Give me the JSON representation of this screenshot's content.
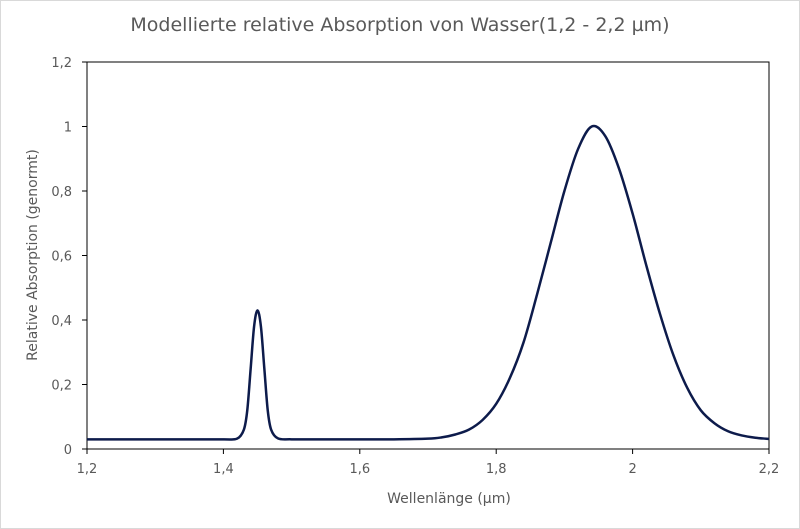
{
  "chart_data": {
    "type": "line",
    "title": "Modellierte relative Absorption von Wasser(1,2 - 2,2 µm)",
    "xlabel": "Wellenlänge (µm)",
    "ylabel": "Relative Absorption (genormt)",
    "xlim": [
      1.2,
      2.2
    ],
    "ylim": [
      0,
      1.2
    ],
    "xticks": [
      1.2,
      1.4,
      1.6,
      1.8,
      2.0,
      2.2
    ],
    "xtick_labels": [
      "1,2",
      "1,4",
      "1,6",
      "1,8",
      "2",
      "2,2"
    ],
    "yticks": [
      0,
      0.2,
      0.4,
      0.6,
      0.8,
      1.0,
      1.2
    ],
    "ytick_labels": [
      "0",
      "0,2",
      "0,4",
      "0,6",
      "0,8",
      "1",
      "1,2"
    ],
    "grid": false,
    "legend": "none",
    "line_color": "#0d1b4b",
    "series": [
      {
        "x": [
          1.2,
          1.25,
          1.3,
          1.35,
          1.4,
          1.42,
          1.43,
          1.435,
          1.44,
          1.445,
          1.45,
          1.455,
          1.46,
          1.465,
          1.47,
          1.48,
          1.5,
          1.55,
          1.6,
          1.65,
          1.7,
          1.72,
          1.74,
          1.76,
          1.78,
          1.8,
          1.82,
          1.84,
          1.86,
          1.88,
          1.9,
          1.92,
          1.94,
          1.96,
          1.98,
          2.0,
          2.02,
          2.04,
          2.06,
          2.08,
          2.1,
          2.12,
          2.14,
          2.16,
          2.18,
          2.2
        ],
        "y": [
          0.03,
          0.03,
          0.03,
          0.03,
          0.03,
          0.032,
          0.06,
          0.12,
          0.25,
          0.38,
          0.43,
          0.38,
          0.25,
          0.12,
          0.06,
          0.033,
          0.03,
          0.03,
          0.03,
          0.03,
          0.032,
          0.036,
          0.045,
          0.06,
          0.09,
          0.14,
          0.22,
          0.33,
          0.48,
          0.64,
          0.8,
          0.93,
          1.0,
          0.97,
          0.87,
          0.73,
          0.57,
          0.42,
          0.29,
          0.19,
          0.12,
          0.08,
          0.055,
          0.042,
          0.035,
          0.031
        ]
      }
    ]
  }
}
